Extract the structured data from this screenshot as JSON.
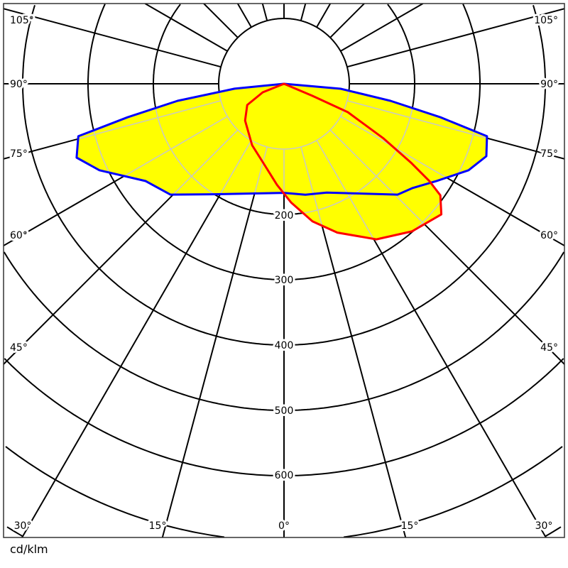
{
  "chart_data": {
    "type": "polar",
    "unit_label": "cd/klm",
    "angle_convention": "gamma measured from nadir (0° downward); negative = left half",
    "radial_ticks": [
      "200",
      "300",
      "400",
      "500",
      "600"
    ],
    "radial_grid_step": 100,
    "angle_grid_step": 15,
    "angle_labels_left": [
      "105°",
      "90°",
      "75°",
      "60°",
      "45°"
    ],
    "angle_labels_right": [
      "105°",
      "90°",
      "75°",
      "60°",
      "45°"
    ],
    "angle_labels_bottom": [
      "30°",
      "15°",
      "0°",
      "15°",
      "30°"
    ],
    "fill_color": "#ffff00",
    "series": [
      {
        "color": "#0000ff",
        "points": [
          [
            -90,
            0
          ],
          [
            -84.3,
            76
          ],
          [
            -80.9,
            165
          ],
          [
            -77.9,
            245
          ],
          [
            -75.7,
            325
          ],
          [
            -70.4,
            337
          ],
          [
            -64.9,
            312
          ],
          [
            -54.9,
            259
          ],
          [
            -45.7,
            243
          ],
          [
            -32.7,
            201
          ],
          [
            0,
            167
          ],
          [
            10.9,
            173
          ],
          [
            21.4,
            179
          ],
          [
            45.7,
            243
          ],
          [
            50.8,
            253
          ],
          [
            57.5,
            277
          ],
          [
            64.9,
            312
          ],
          [
            70.3,
            329
          ],
          [
            75.5,
            321
          ],
          [
            77.9,
            245
          ],
          [
            80.9,
            165
          ],
          [
            85,
            87
          ],
          [
            90,
            0
          ]
        ]
      },
      {
        "color": "#ff0000",
        "points": [
          [
            -90,
            0
          ],
          [
            -68.2,
            35
          ],
          [
            -60,
            65
          ],
          [
            -46.6,
            82
          ],
          [
            -35.5,
            93
          ],
          [
            -27.4,
            106
          ],
          [
            -15.3,
            124
          ],
          [
            -4,
            155
          ],
          [
            3.4,
            182
          ],
          [
            11.7,
            215
          ],
          [
            19.7,
            242
          ],
          [
            30.7,
            277
          ],
          [
            40.9,
            299
          ],
          [
            50.3,
            313
          ],
          [
            54.5,
            294
          ],
          [
            56.2,
            268
          ],
          [
            58.1,
            230
          ],
          [
            61.2,
            174
          ],
          [
            66,
            107
          ],
          [
            67,
            47
          ],
          [
            90,
            0
          ]
        ]
      }
    ]
  }
}
